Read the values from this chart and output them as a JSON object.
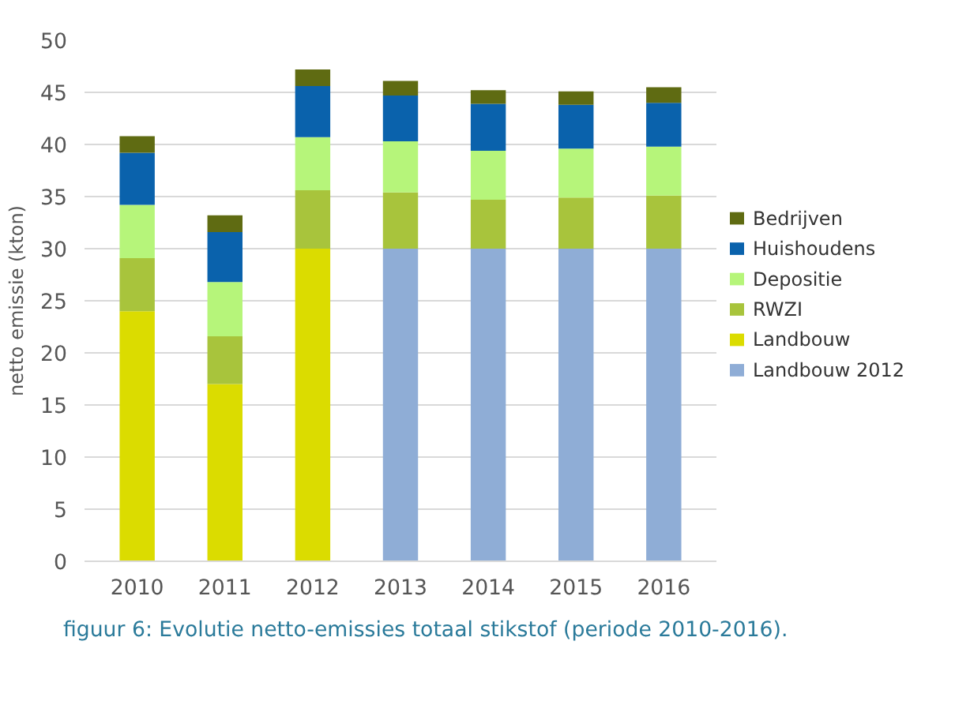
{
  "chart_data": {
    "type": "bar",
    "stacked": true,
    "ylabel": "netto emissie (kton)",
    "categories": [
      "2010",
      "2011",
      "2012",
      "2013",
      "2014",
      "2015",
      "2016"
    ],
    "series": [
      {
        "name": "Landbouw 2012",
        "color": "#8fadd6",
        "values": [
          null,
          null,
          null,
          30,
          30,
          30,
          30
        ]
      },
      {
        "name": "Landbouw",
        "color": "#dbdc00",
        "values": [
          24,
          17,
          30,
          null,
          null,
          null,
          null
        ]
      },
      {
        "name": "RWZI",
        "color": "#a8c43c",
        "values": [
          5.1,
          4.6,
          5.6,
          5.4,
          4.7,
          4.9,
          5.1
        ]
      },
      {
        "name": "Depositie",
        "color": "#b6f57a",
        "values": [
          5.1,
          5.2,
          5.1,
          4.9,
          4.7,
          4.7,
          4.7
        ]
      },
      {
        "name": "Huishoudens",
        "color": "#0a62ac",
        "values": [
          5.0,
          4.8,
          4.9,
          4.4,
          4.5,
          4.2,
          4.2
        ]
      },
      {
        "name": "Bedrijven",
        "color": "#5f6b12",
        "values": [
          1.6,
          1.6,
          1.6,
          1.4,
          1.3,
          1.3,
          1.5
        ]
      }
    ],
    "ylim": [
      0,
      50
    ],
    "yticks": [
      0,
      5,
      10,
      15,
      20,
      25,
      30,
      35,
      40,
      45,
      50
    ],
    "grid": "y",
    "legend": "right",
    "annotations": [
      "figuur 6: Evolutie netto-emissies totaal stikstof (periode 2010-2016)."
    ]
  }
}
